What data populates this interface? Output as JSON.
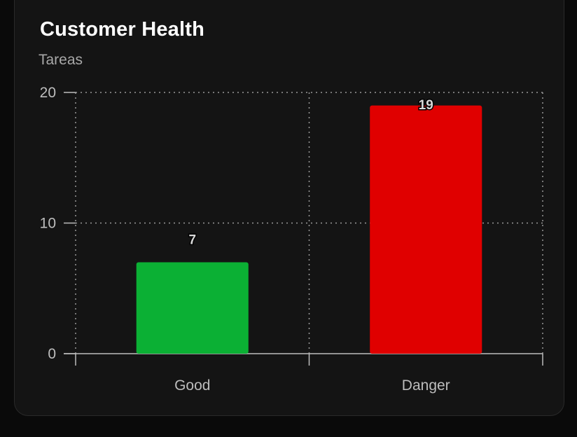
{
  "card": {
    "title": "Customer Health",
    "subtitle": "Tareas"
  },
  "chart_data": {
    "type": "bar",
    "categories": [
      "Good",
      "Danger"
    ],
    "values": [
      7,
      19
    ],
    "colors": [
      "#0bb034",
      "#e00000"
    ],
    "ylim": [
      0,
      20
    ],
    "yticks": [
      0,
      10,
      20
    ],
    "grid": true,
    "data_labels": true
  }
}
